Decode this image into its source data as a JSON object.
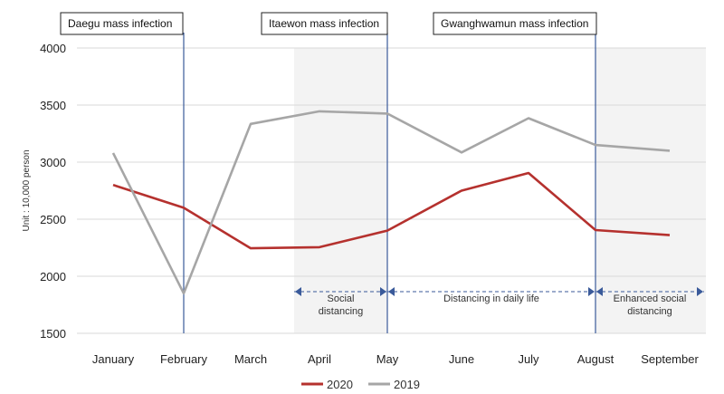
{
  "chart_data": {
    "type": "line",
    "ylabel": "Unit : 10,000 person",
    "ylim": [
      1500,
      4000
    ],
    "yticks": [
      1500,
      2000,
      2500,
      3000,
      3500,
      4000
    ],
    "categories": [
      "January",
      "February",
      "March",
      "April",
      "May",
      "June",
      "July",
      "August",
      "September"
    ],
    "series": [
      {
        "name": "2020",
        "color": "#b5312e",
        "values": [
          2800,
          2600,
          2245,
          2255,
          2400,
          2750,
          2905,
          2405,
          2360
        ]
      },
      {
        "name": "2019",
        "color": "#a6a6a6",
        "values": [
          3080,
          1850,
          3335,
          3445,
          3425,
          3085,
          3385,
          3150,
          3100
        ]
      }
    ],
    "events": [
      {
        "label": "Daegu mass infection",
        "at": "February"
      },
      {
        "label": "Itaewon mass infection",
        "at": "May"
      },
      {
        "label": "Gwanghwamun mass infection",
        "at": "August"
      }
    ],
    "phases": [
      {
        "label": [
          "Social",
          "distancing"
        ],
        "from": "April",
        "to": "May",
        "shaded": true
      },
      {
        "label": [
          "Distancing in daily life"
        ],
        "from": "May",
        "to": "August",
        "shaded": false
      },
      {
        "label": [
          "Enhanced social",
          "distancing"
        ],
        "from": "August",
        "to": "September",
        "shaded": true
      }
    ],
    "grid": true,
    "legend_position": "bottom-center"
  }
}
